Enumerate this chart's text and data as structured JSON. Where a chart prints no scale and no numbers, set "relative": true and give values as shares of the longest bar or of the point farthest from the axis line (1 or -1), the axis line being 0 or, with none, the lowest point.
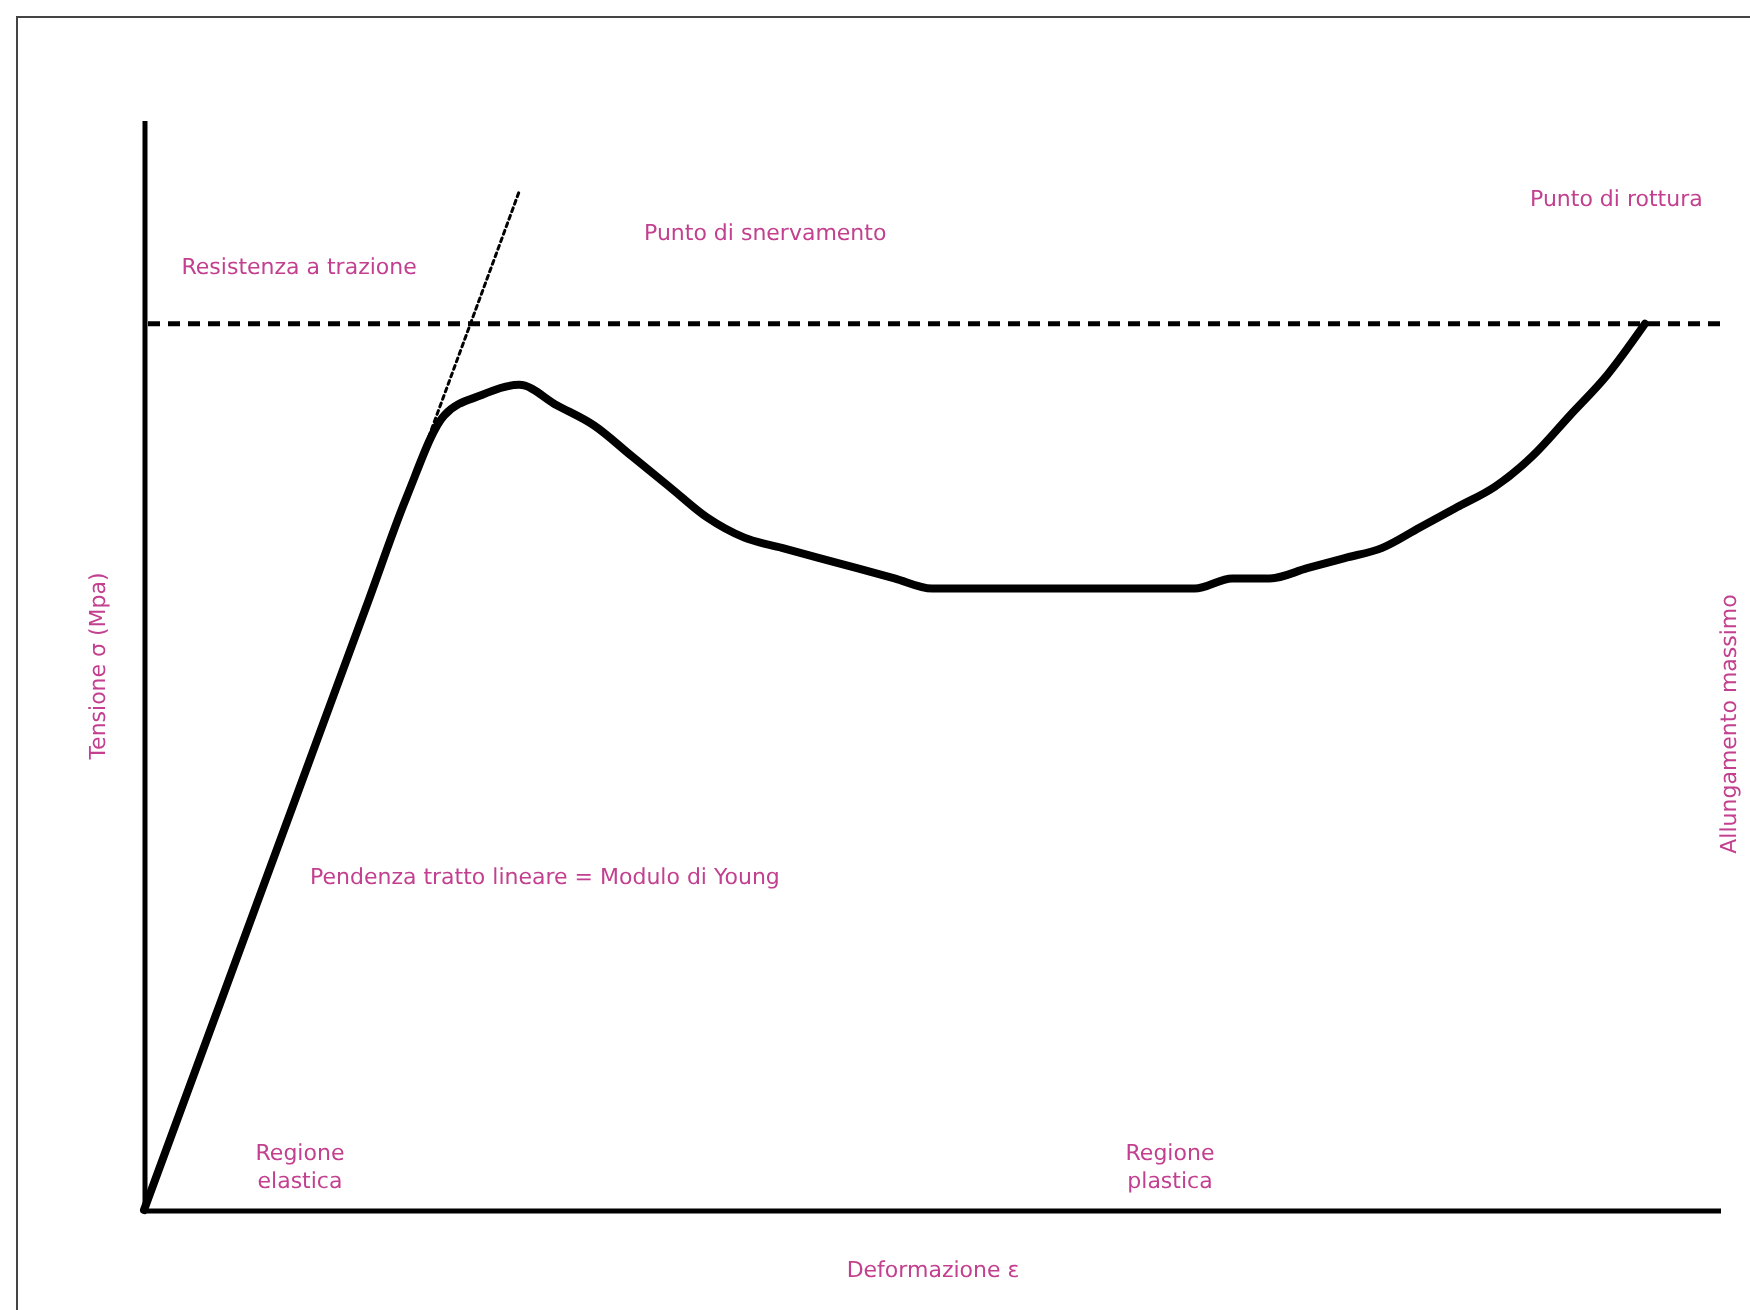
{
  "chart_data": {
    "type": "line",
    "relative": true,
    "xlabel": "Deformazione ε",
    "ylabel": "Tensione σ (Mpa)",
    "categories": [
      null,
      null,
      null,
      null,
      null,
      null,
      null,
      null,
      null,
      null,
      null,
      null,
      null,
      null,
      null,
      null,
      null,
      null,
      null,
      null,
      null,
      null,
      null,
      null,
      null,
      null,
      null,
      null,
      null,
      null,
      null,
      null,
      null,
      null,
      null,
      null,
      null,
      null,
      null,
      null,
      null,
      null,
      null
    ],
    "series": [
      {
        "color": "#000000",
        "line_style": "solid",
        "values": [
          0,
          0.1,
          0.2,
          0.3,
          0.4,
          0.5,
          0.6,
          0.7,
          0.78,
          0.8,
          0.81,
          0.79,
          0.77,
          0.74,
          0.71,
          0.68,
          0.66,
          0.65,
          0.64,
          0.63,
          0.62,
          0.61,
          0.61,
          0.61,
          0.61,
          0.61,
          0.61,
          0.61,
          0.61,
          0.62,
          0.62,
          0.63,
          0.64,
          0.65,
          0.67,
          0.69,
          0.71,
          0.74,
          0.78,
          0.82,
          0.87,
          null,
          null
        ]
      },
      {
        "type": "line",
        "color": "#000000",
        "line_style": "dotted",
        "values": [
          null,
          null,
          null,
          null,
          null,
          null,
          null,
          0.7,
          0.8,
          0.9,
          1,
          null,
          null,
          null,
          null,
          null,
          null,
          null,
          null,
          null,
          null,
          null,
          null,
          null,
          null,
          null,
          null,
          null,
          null,
          null,
          null,
          null,
          null,
          null,
          null,
          null,
          null,
          null,
          null,
          null,
          null,
          null,
          null
        ]
      }
    ],
    "ref_lines": [
      {
        "axis": "y",
        "value": 0.87,
        "label": "Resistenza a trazione",
        "color": "#000000",
        "line_style": "dashed"
      }
    ],
    "annotations": [
      "Punto di snervamento",
      "Punto di rottura",
      "Pendenza tratto lineare = Modulo di Young",
      "Regione elastica",
      "Regione plastica",
      "Allungamento massimo"
    ],
    "grid": false
  }
}
